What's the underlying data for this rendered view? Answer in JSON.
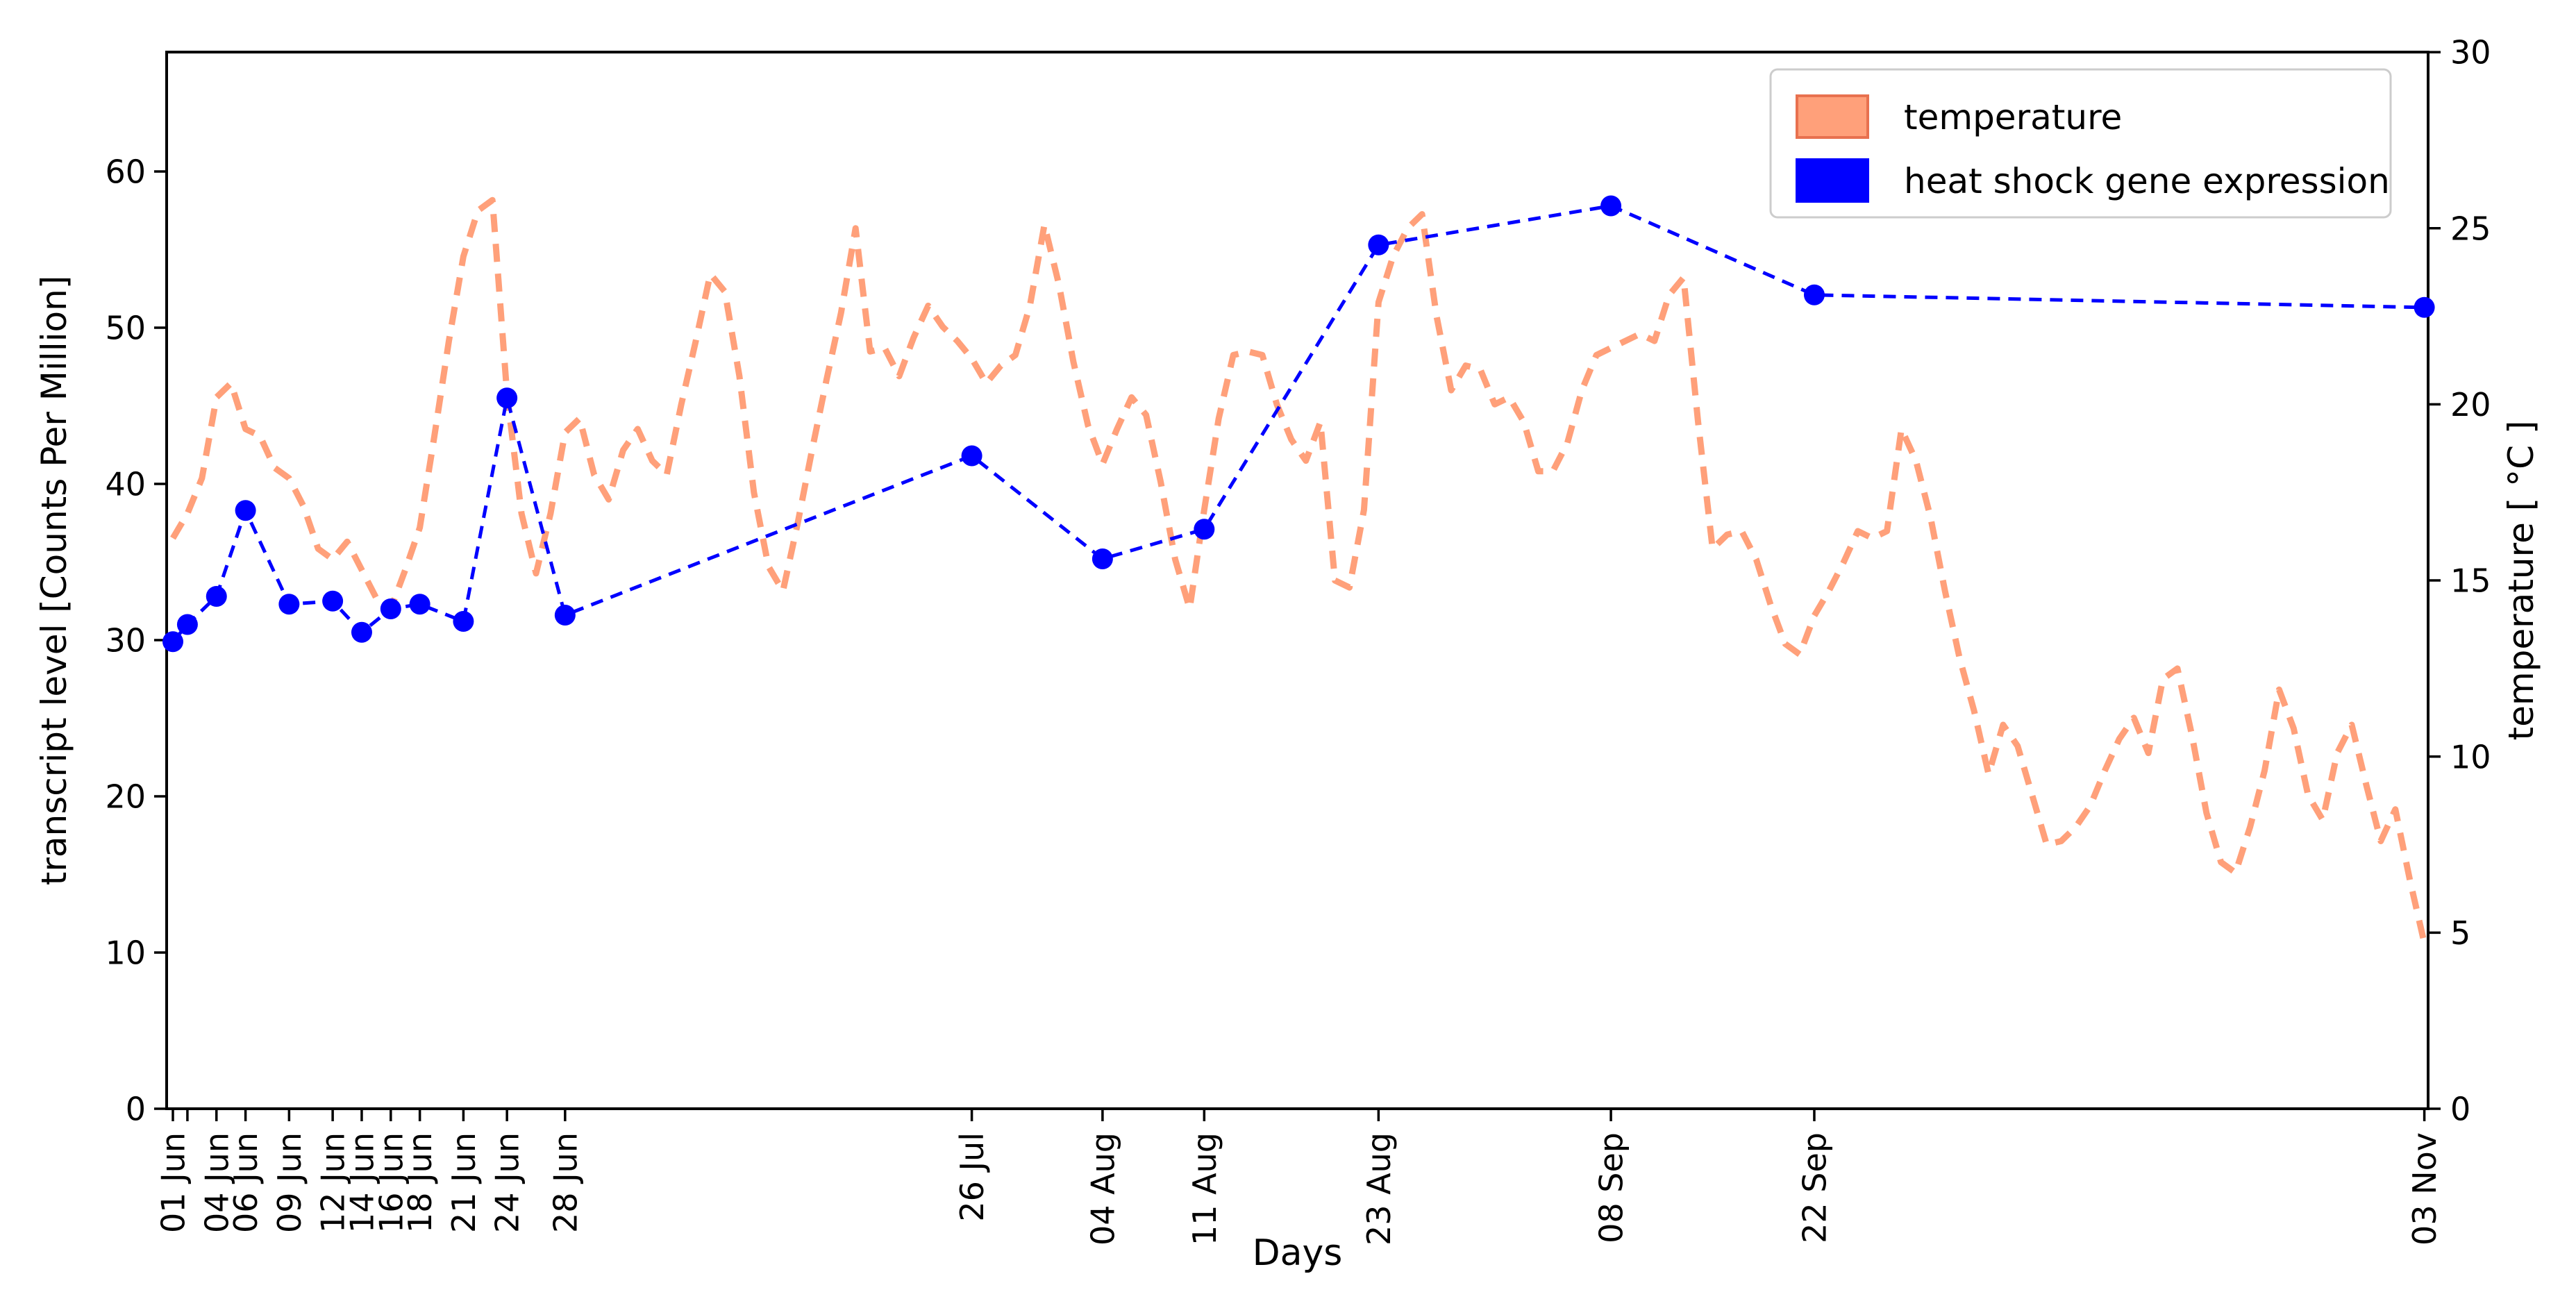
{
  "chart_data": {
    "type": "line",
    "title": "",
    "xlabel": "Days",
    "left_axis": {
      "label": "transcript level [Counts Per Million]",
      "ticks": [
        0,
        10,
        20,
        30,
        40,
        50,
        60
      ],
      "range": [
        0,
        67.6
      ]
    },
    "right_axis": {
      "label": "temperature [ °C ]",
      "ticks": [
        0,
        5,
        10,
        15,
        20,
        25,
        30
      ],
      "range": [
        0,
        30
      ]
    },
    "x_ticks": [
      {
        "label": "01 Jun",
        "day": 1
      },
      {
        "label": "",
        "day": 2
      },
      {
        "label": "04 Jun",
        "day": 4
      },
      {
        "label": "06 Jun",
        "day": 6
      },
      {
        "label": "09 Jun",
        "day": 9
      },
      {
        "label": "12 Jun",
        "day": 12
      },
      {
        "label": "14 Jun",
        "day": 14
      },
      {
        "label": "16 Jun",
        "day": 16
      },
      {
        "label": "18 Jun",
        "day": 18
      },
      {
        "label": "21 Jun",
        "day": 21
      },
      {
        "label": "24 Jun",
        "day": 24
      },
      {
        "label": "28 Jun",
        "day": 28
      },
      {
        "label": "26 Jul",
        "day": 56
      },
      {
        "label": "04 Aug",
        "day": 65
      },
      {
        "label": "11 Aug",
        "day": 72
      },
      {
        "label": "23 Aug",
        "day": 84
      },
      {
        "label": "08 Sep",
        "day": 100
      },
      {
        "label": "22 Sep",
        "day": 114
      },
      {
        "label": "03 Nov",
        "day": 156
      }
    ],
    "legend": {
      "position": "upper right",
      "entries": [
        {
          "label": "temperature",
          "color": "#FFA07A",
          "edge": "#E8714F",
          "type": "patch"
        },
        {
          "label": "heat shock gene expression",
          "color": "#0000FF",
          "edge": "none",
          "type": "patch"
        }
      ]
    },
    "series": [
      {
        "name": "temperature",
        "axis": "right",
        "color": "#FFA07A",
        "style": "dashed",
        "start_date": "01 Jun",
        "end_date": "03 Nov",
        "daily_values": [
          16.2,
          16.9,
          17.9,
          20.2,
          20.6,
          19.3,
          19.1,
          18.2,
          17.9,
          17.1,
          15.9,
          15.6,
          16.1,
          15.3,
          14.5,
          14.2,
          15.3,
          16.5,
          19.1,
          21.8,
          24.2,
          25.5,
          25.8,
          20.3,
          16.9,
          15.2,
          16.9,
          19.2,
          19.6,
          18.0,
          17.3,
          18.7,
          19.3,
          18.4,
          18.0,
          20.0,
          21.8,
          23.7,
          23.2,
          20.8,
          17.5,
          15.4,
          14.7,
          16.6,
          18.7,
          20.7,
          22.6,
          25.0,
          21.5,
          21.6,
          20.8,
          21.9,
          22.8,
          22.2,
          21.8,
          21.3,
          20.6,
          21.1,
          21.4,
          22.8,
          25.1,
          23.4,
          21.2,
          19.4,
          18.3,
          19.3,
          20.2,
          19.7,
          17.8,
          15.6,
          14.2,
          17.0,
          19.6,
          21.4,
          21.5,
          21.4,
          20.0,
          19.0,
          18.4,
          19.5,
          15.0,
          14.8,
          17.0,
          22.9,
          24.2,
          25.0,
          25.4,
          22.5,
          20.4,
          21.1,
          21.0,
          20.0,
          20.2,
          19.5,
          18.1,
          18.1,
          18.9,
          20.4,
          21.4,
          21.6,
          21.8,
          22.0,
          21.8,
          23.1,
          23.6,
          19.5,
          15.9,
          16.3,
          16.4,
          15.6,
          14.3,
          13.2,
          12.9,
          14.0,
          14.7,
          15.5,
          16.4,
          16.2,
          16.4,
          19.3,
          18.4,
          16.8,
          14.7,
          12.8,
          11.3,
          9.5,
          10.9,
          10.3,
          8.9,
          7.5,
          7.6,
          8.0,
          8.6,
          9.6,
          10.5,
          11.1,
          10.1,
          12.2,
          12.5,
          10.6,
          8.4,
          7.0,
          6.7,
          8.0,
          9.6,
          11.9,
          10.8,
          8.9,
          8.2,
          10.1,
          10.9,
          9.2,
          7.6,
          8.5,
          6.5,
          4.7
        ]
      },
      {
        "name": "heat shock gene expression",
        "axis": "left",
        "color": "#0000FF",
        "style": "dashed-markers",
        "points": [
          {
            "date": "01 Jun",
            "day": 1,
            "value": 29.9
          },
          {
            "date": "02 Jun",
            "day": 2,
            "value": 31.0
          },
          {
            "date": "04 Jun",
            "day": 4,
            "value": 32.8
          },
          {
            "date": "06 Jun",
            "day": 6,
            "value": 38.3
          },
          {
            "date": "09 Jun",
            "day": 9,
            "value": 32.3
          },
          {
            "date": "12 Jun",
            "day": 12,
            "value": 32.5
          },
          {
            "date": "14 Jun",
            "day": 14,
            "value": 30.5
          },
          {
            "date": "16 Jun",
            "day": 16,
            "value": 32.0
          },
          {
            "date": "18 Jun",
            "day": 18,
            "value": 32.3
          },
          {
            "date": "21 Jun",
            "day": 21,
            "value": 31.2
          },
          {
            "date": "24 Jun",
            "day": 24,
            "value": 45.5
          },
          {
            "date": "28 Jun",
            "day": 28,
            "value": 31.6
          },
          {
            "date": "26 Jul",
            "day": 56,
            "value": 41.8
          },
          {
            "date": "04 Aug",
            "day": 65,
            "value": 35.2
          },
          {
            "date": "11 Aug",
            "day": 72,
            "value": 37.1
          },
          {
            "date": "23 Aug",
            "day": 84,
            "value": 55.3
          },
          {
            "date": "08 Sep",
            "day": 100,
            "value": 57.8
          },
          {
            "date": "22 Sep",
            "day": 114,
            "value": 52.1
          },
          {
            "date": "03 Nov",
            "day": 156,
            "value": 51.3
          }
        ]
      }
    ]
  }
}
